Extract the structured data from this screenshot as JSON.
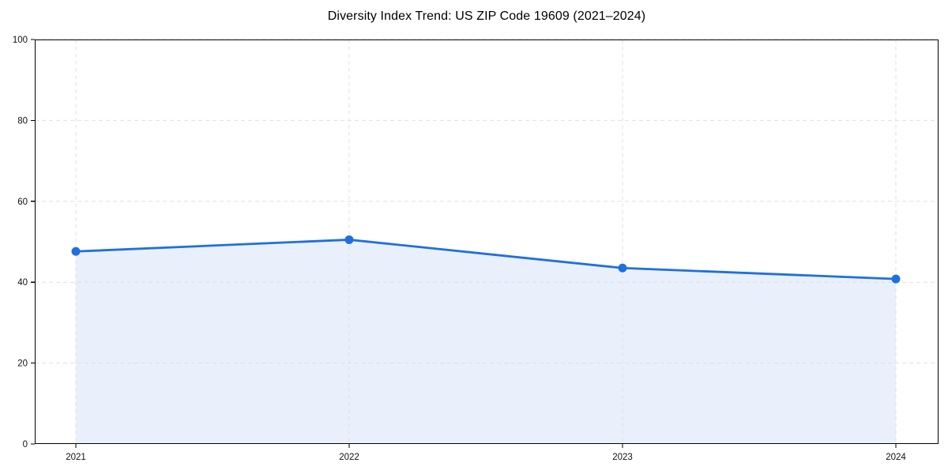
{
  "chart_data": {
    "type": "line",
    "area_fill": true,
    "title": "Diversity Index Trend: US ZIP Code 19609 (2021–2024)",
    "x": [
      "2021",
      "2022",
      "2023",
      "2024"
    ],
    "series": [
      {
        "name": "Diversity Index",
        "values": [
          47.6,
          50.5,
          43.5,
          40.8
        ]
      }
    ],
    "xlabel": "",
    "ylabel": "",
    "ylim": [
      0,
      100
    ],
    "yticks": [
      0,
      20,
      40,
      60,
      80,
      100
    ],
    "grid": "dashed",
    "legend_position": "none",
    "marker": "circle",
    "colors": {
      "line": "#1f6fe0",
      "marker": "#1f6fe0",
      "area_fill": "#e9f0fc",
      "grid": "#dcdcdc",
      "axis": "#000000",
      "text": "#111111",
      "background": "#ffffff"
    }
  }
}
